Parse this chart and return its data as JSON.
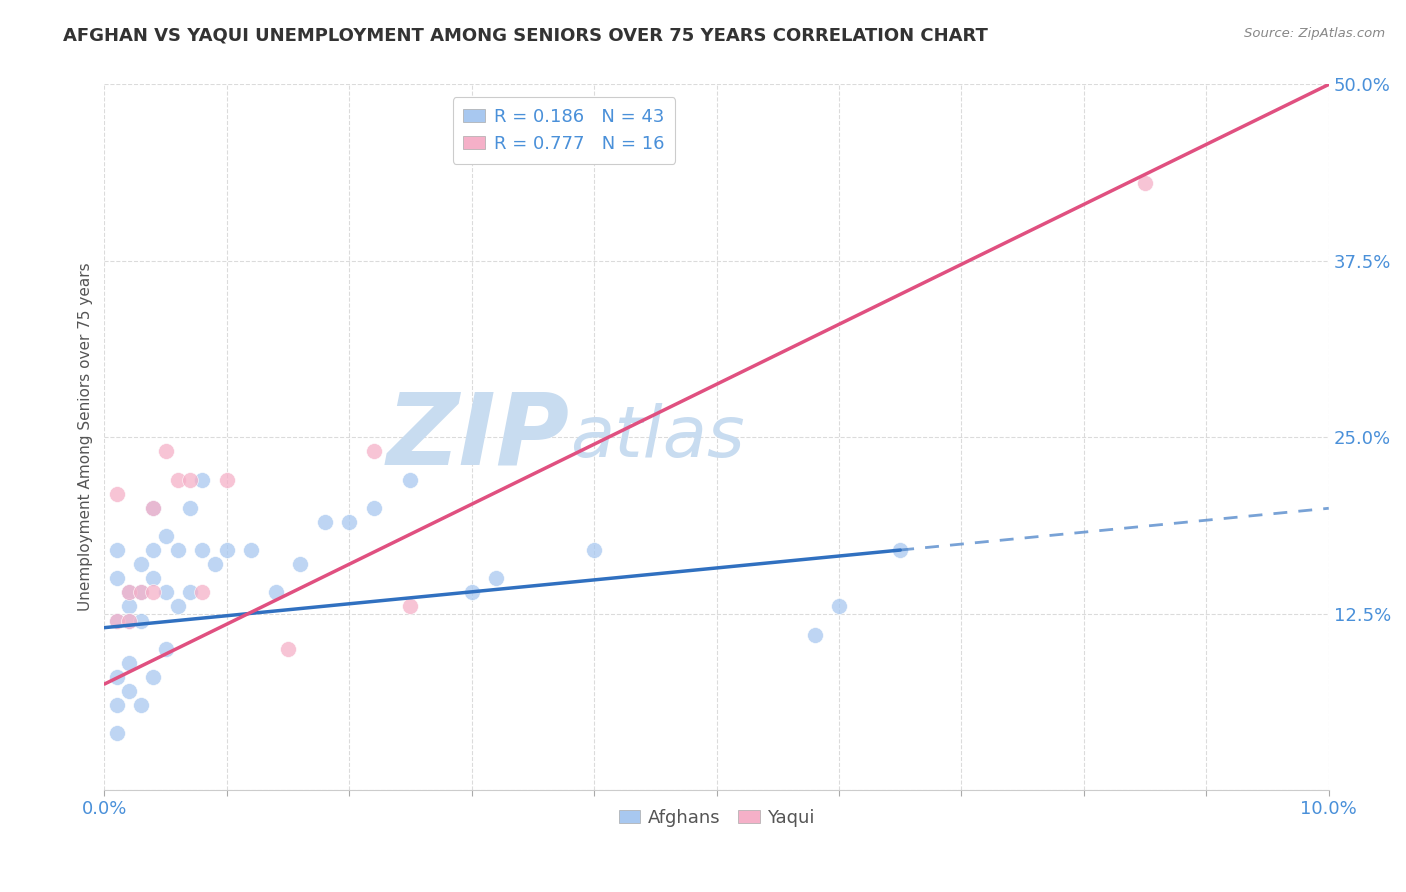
{
  "title": "AFGHAN VS YAQUI UNEMPLOYMENT AMONG SENIORS OVER 75 YEARS CORRELATION CHART",
  "source": "Source: ZipAtlas.com",
  "ylabel": "Unemployment Among Seniors over 75 years",
  "xlim": [
    0,
    0.1
  ],
  "ylim": [
    0,
    0.5
  ],
  "xticks": [
    0.0,
    0.01,
    0.02,
    0.03,
    0.04,
    0.05,
    0.06,
    0.07,
    0.08,
    0.09,
    0.1
  ],
  "yticks": [
    0.0,
    0.125,
    0.25,
    0.375,
    0.5
  ],
  "ytick_labels": [
    "",
    "12.5%",
    "25.0%",
    "37.5%",
    "50.0%"
  ],
  "xtick_labels": [
    "0.0%",
    "",
    "",
    "",
    "",
    "",
    "",
    "",
    "",
    "",
    "10.0%"
  ],
  "afghan_R": 0.186,
  "afghan_N": 43,
  "yaqui_R": 0.777,
  "yaqui_N": 16,
  "afghan_color": "#A8C8F0",
  "yaqui_color": "#F5B0C8",
  "afghan_line_color": "#3070C0",
  "yaqui_line_color": "#E05080",
  "watermark_zip_color": "#C8DCF0",
  "watermark_atlas_color": "#C8DCF0",
  "background_color": "#FFFFFF",
  "grid_color": "#CCCCCC",
  "afghan_x": [
    0.001,
    0.001,
    0.001,
    0.001,
    0.001,
    0.001,
    0.002,
    0.002,
    0.002,
    0.002,
    0.002,
    0.003,
    0.003,
    0.003,
    0.003,
    0.004,
    0.004,
    0.004,
    0.004,
    0.005,
    0.005,
    0.005,
    0.006,
    0.006,
    0.007,
    0.007,
    0.008,
    0.008,
    0.009,
    0.01,
    0.012,
    0.014,
    0.016,
    0.018,
    0.02,
    0.022,
    0.025,
    0.03,
    0.032,
    0.04,
    0.058,
    0.06,
    0.065
  ],
  "afghan_y": [
    0.12,
    0.15,
    0.17,
    0.08,
    0.06,
    0.04,
    0.14,
    0.13,
    0.12,
    0.09,
    0.07,
    0.16,
    0.14,
    0.12,
    0.06,
    0.2,
    0.17,
    0.15,
    0.08,
    0.18,
    0.14,
    0.1,
    0.17,
    0.13,
    0.2,
    0.14,
    0.22,
    0.17,
    0.16,
    0.17,
    0.17,
    0.14,
    0.16,
    0.19,
    0.19,
    0.2,
    0.22,
    0.14,
    0.15,
    0.17,
    0.11,
    0.13,
    0.17
  ],
  "yaqui_x": [
    0.001,
    0.001,
    0.002,
    0.002,
    0.003,
    0.004,
    0.004,
    0.005,
    0.006,
    0.007,
    0.008,
    0.01,
    0.015,
    0.022,
    0.025,
    0.085
  ],
  "yaqui_y": [
    0.21,
    0.12,
    0.14,
    0.12,
    0.14,
    0.2,
    0.14,
    0.24,
    0.22,
    0.22,
    0.14,
    0.22,
    0.1,
    0.24,
    0.13,
    0.43
  ],
  "afghan_line_x0": 0.0,
  "afghan_line_x1": 0.065,
  "afghan_line_x2": 0.1,
  "afghan_line_y_at_0": 0.115,
  "afghan_line_y_at_065": 0.17,
  "yaqui_line_x0": 0.0,
  "yaqui_line_x1": 0.1,
  "yaqui_line_y_at_0": 0.075,
  "yaqui_line_y_at_10": 0.5
}
